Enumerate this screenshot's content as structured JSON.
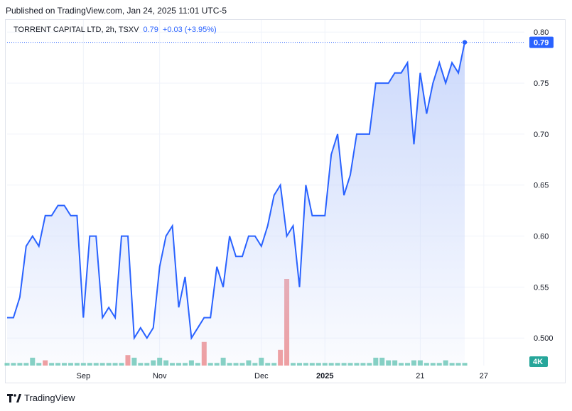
{
  "header": {
    "published_text": "Published on TradingView.com, Jan 24, 2025 11:01 UTC-5"
  },
  "legend": {
    "symbol": "TORRENT CAPITAL LTD, 2h, TSXV",
    "last": "0.79",
    "change": "+0.03 (+3.95%)"
  },
  "footer": {
    "brand": "TradingView",
    "logo_icon": "tradingview-logo-icon"
  },
  "colors": {
    "line": "#2962ff",
    "area_top": "#c9d7fb",
    "volume_up": "#7fcfbf",
    "volume_down": "#f19a9a",
    "grid": "#f0f3fa",
    "last_price_label_bg": "#2962ff",
    "volume_label_bg": "#26a69a"
  },
  "chart_data": {
    "type": "area",
    "y_ticks": [
      "0.80",
      "0.75",
      "0.70",
      "0.65",
      "0.60",
      "0.55",
      "0.500"
    ],
    "y_tick_values": [
      0.8,
      0.75,
      0.7,
      0.65,
      0.6,
      0.55,
      0.5
    ],
    "ylim": [
      0.473,
      0.812
    ],
    "x_ticks": [
      "Sep",
      "Nov",
      "Dec",
      "2025",
      "21",
      "27"
    ],
    "x_tick_index": [
      12,
      24,
      40,
      50,
      65,
      75
    ],
    "bold_x_tick": "2025",
    "last_price_label": "0.79",
    "volume_label": "4K",
    "grid": true,
    "values": [
      0.52,
      0.52,
      0.54,
      0.59,
      0.6,
      0.59,
      0.62,
      0.62,
      0.63,
      0.63,
      0.62,
      0.62,
      0.52,
      0.6,
      0.6,
      0.52,
      0.53,
      0.52,
      0.6,
      0.6,
      0.5,
      0.51,
      0.5,
      0.51,
      0.57,
      0.6,
      0.61,
      0.53,
      0.56,
      0.5,
      0.51,
      0.52,
      0.52,
      0.57,
      0.55,
      0.6,
      0.58,
      0.58,
      0.6,
      0.6,
      0.59,
      0.61,
      0.64,
      0.65,
      0.6,
      0.61,
      0.55,
      0.65,
      0.62,
      0.62,
      0.62,
      0.68,
      0.7,
      0.64,
      0.66,
      0.7,
      0.7,
      0.7,
      0.75,
      0.75,
      0.75,
      0.76,
      0.76,
      0.77,
      0.69,
      0.76,
      0.72,
      0.75,
      0.77,
      0.75,
      0.77,
      0.76,
      0.79
    ],
    "volume": [
      1,
      1,
      1,
      1,
      3,
      1,
      2,
      1,
      1,
      1,
      1,
      1,
      1,
      1,
      1,
      1,
      1,
      1,
      1,
      4,
      3,
      1,
      1,
      2,
      3,
      2,
      1,
      1,
      1,
      2,
      1,
      9,
      1,
      1,
      3,
      1,
      1,
      1,
      2,
      1,
      3,
      1,
      1,
      6,
      33,
      1,
      1,
      1,
      1,
      1,
      1,
      1,
      1,
      1,
      1,
      1,
      1,
      1,
      3,
      3,
      2,
      2,
      1,
      1,
      2,
      2,
      1,
      1,
      1,
      2,
      1,
      1,
      1
    ],
    "volume_down_index": [
      6,
      19,
      31,
      43,
      44
    ]
  }
}
